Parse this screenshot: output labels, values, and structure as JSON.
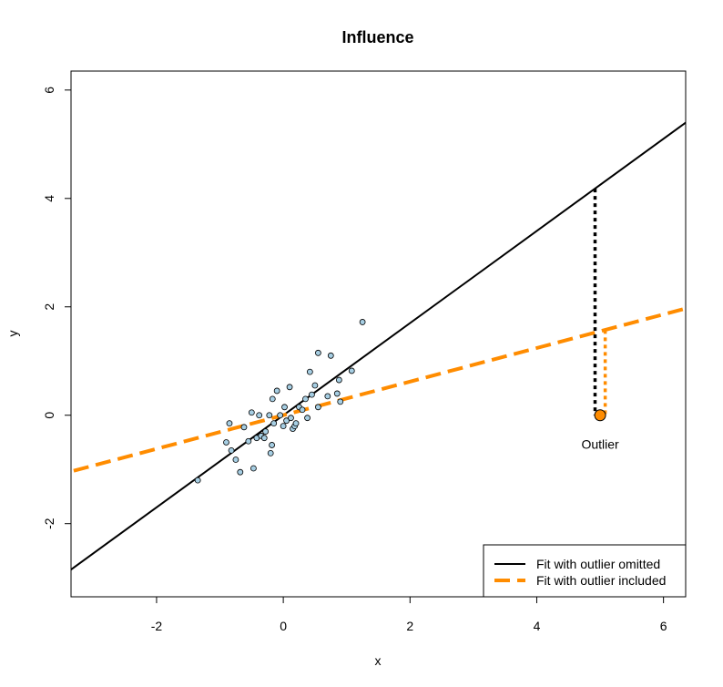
{
  "chart_data": {
    "type": "scatter",
    "title": "Influence",
    "xlabel": "x",
    "ylabel": "y",
    "xlim": [
      -3.35,
      6.35
    ],
    "ylim": [
      -3.35,
      6.35
    ],
    "xticks": [
      -2,
      0,
      2,
      4,
      6
    ],
    "yticks": [
      -2,
      0,
      2,
      4,
      6
    ],
    "xtick_labels": [
      "-2",
      "0",
      "2",
      "4",
      "6"
    ],
    "ytick_labels": [
      "-2",
      "0",
      "2",
      "4",
      "6"
    ],
    "grid": false,
    "legend_position": "bottom-right",
    "points": {
      "color": "#a6cee3",
      "x": [
        -1.35,
        -0.9,
        -0.85,
        -0.82,
        -0.75,
        -0.68,
        -0.62,
        -0.55,
        -0.5,
        -0.47,
        -0.42,
        -0.38,
        -0.35,
        -0.3,
        -0.28,
        -0.22,
        -0.2,
        -0.18,
        -0.17,
        -0.15,
        -0.1,
        -0.05,
        0.0,
        0.02,
        0.05,
        0.1,
        0.12,
        0.15,
        0.18,
        0.2,
        0.25,
        0.3,
        0.35,
        0.38,
        0.42,
        0.45,
        0.5,
        0.55,
        0.55,
        0.7,
        0.75,
        0.85,
        0.88,
        0.9,
        1.08,
        1.25
      ],
      "y": [
        -1.2,
        -0.5,
        -0.15,
        -0.65,
        -0.82,
        -1.05,
        -0.22,
        -0.48,
        0.05,
        -0.98,
        -0.42,
        0.0,
        -0.38,
        -0.42,
        -0.3,
        0.0,
        -0.7,
        -0.55,
        0.3,
        -0.15,
        0.45,
        0.0,
        -0.2,
        0.15,
        -0.1,
        0.52,
        -0.05,
        -0.25,
        -0.2,
        -0.15,
        0.15,
        0.1,
        0.3,
        -0.05,
        0.8,
        0.38,
        0.55,
        0.15,
        1.15,
        0.35,
        1.1,
        0.4,
        0.65,
        0.25,
        0.82,
        1.72
      ]
    },
    "outlier": {
      "x": 5.0,
      "y": 0.0,
      "color": "#ff8c00",
      "label": "Outlier"
    },
    "lines": [
      {
        "name": "Fit with outlier omitted",
        "intercept": 0.0,
        "slope": 0.85,
        "color": "#000000",
        "style": "solid"
      },
      {
        "name": "Fit with outlier included",
        "intercept": 0.0,
        "slope": 0.31,
        "color": "#ff8c00",
        "style": "dashed"
      }
    ],
    "residuals": [
      {
        "x": 4.92,
        "color": "#000000",
        "from": 4.18,
        "to": 0.0
      },
      {
        "x": 5.08,
        "color": "#ff8c00",
        "from": 1.57,
        "to": 0.0
      }
    ]
  }
}
